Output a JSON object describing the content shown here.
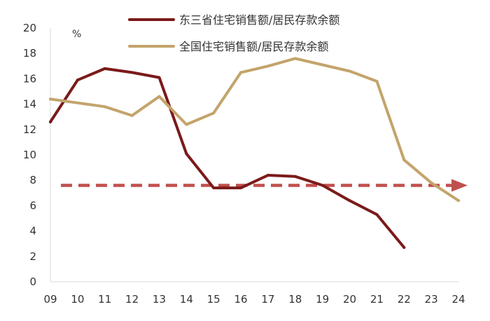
{
  "chart_data": {
    "type": "line",
    "title": "",
    "xlabel": "",
    "ylabel": "",
    "unit": "%",
    "x": [
      "09",
      "10",
      "11",
      "12",
      "13",
      "14",
      "15",
      "16",
      "17",
      "18",
      "19",
      "20",
      "21",
      "22",
      "23",
      "24"
    ],
    "ylim": [
      0,
      20
    ],
    "yticks": [
      0,
      2,
      4,
      6,
      8,
      10,
      12,
      14,
      16,
      18,
      20
    ],
    "grid": false,
    "legend_position": "top",
    "series": [
      {
        "name": "东三省住宅销售额/居民存款余额",
        "color": "#7B1A1A",
        "values": [
          12.6,
          15.9,
          16.8,
          16.5,
          16.1,
          10.1,
          7.4,
          7.4,
          8.4,
          8.3,
          7.6,
          6.4,
          5.3,
          2.7,
          null,
          null
        ]
      },
      {
        "name": "全国住宅销售额/居民存款余额",
        "color": "#C3A46B",
        "values": [
          14.4,
          14.1,
          13.8,
          13.1,
          14.6,
          12.4,
          13.3,
          16.5,
          17.0,
          17.6,
          17.1,
          16.6,
          15.8,
          9.6,
          7.8,
          6.4
        ]
      }
    ],
    "reference_line": {
      "value": 7.6,
      "style": "dashed-arrow",
      "color": "#C0504D"
    }
  }
}
